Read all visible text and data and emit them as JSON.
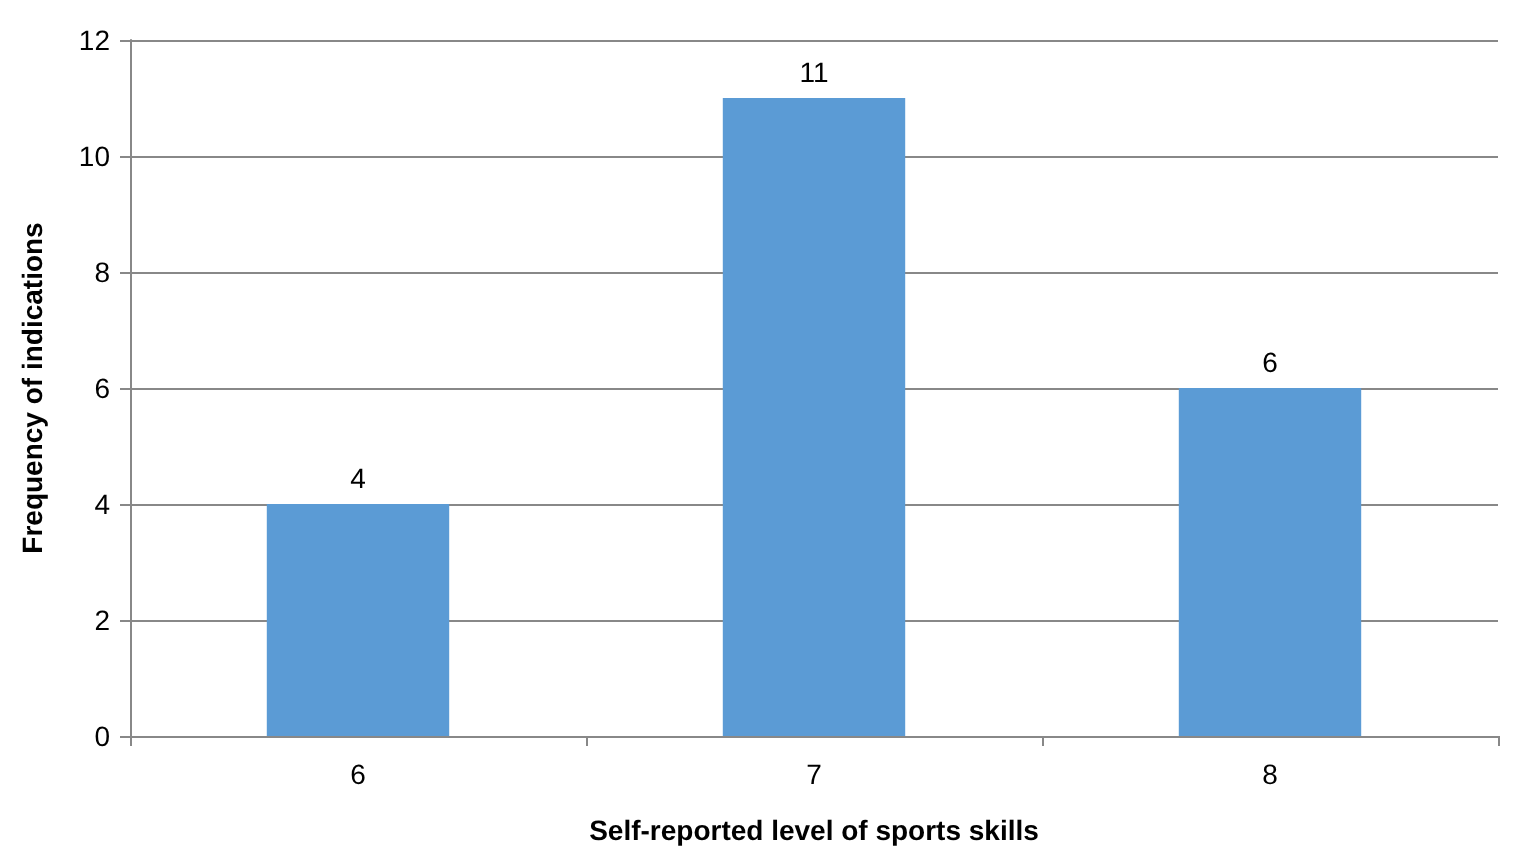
{
  "chart_data": {
    "type": "bar",
    "xlabel": "Self-reported level of sports skills",
    "ylabel": "Frequency of indications",
    "categories": [
      "6",
      "7",
      "8"
    ],
    "values": [
      4,
      11,
      6
    ],
    "color": "#5b9bd5",
    "ylim": [
      0,
      12
    ],
    "yticks": [
      0,
      2,
      4,
      6,
      8,
      10,
      12
    ],
    "grid": "y",
    "data_labels": true
  }
}
